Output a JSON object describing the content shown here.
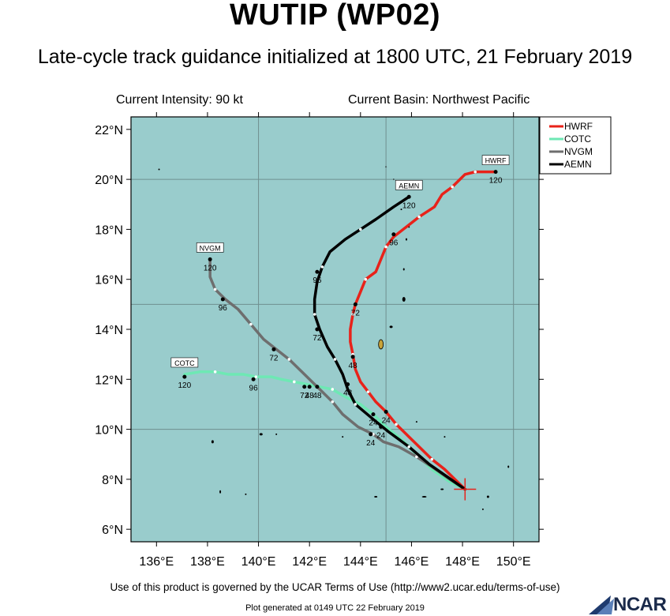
{
  "header": {
    "title": "WUTIP (WP02)",
    "subtitle": "Late-cycle track guidance initialized at 1800 UTC, 21 February 2019",
    "intensity_label": "Current Intensity: 90 kt",
    "basin_label": "Current Basin: Northwest Pacific"
  },
  "footer": {
    "terms": "Use of this product is governed by the UCAR Terms of Use (http://www2.ucar.edu/terms-of-use)",
    "generated": "Plot generated at 0149 UTC  22 February 2019",
    "logo_text": "NCAR"
  },
  "chart_data": {
    "type": "line",
    "xlim": [
      135,
      151
    ],
    "ylim": [
      5.5,
      22.5
    ],
    "x_ticks": [
      136,
      138,
      140,
      142,
      144,
      146,
      148,
      150
    ],
    "x_tick_labels": [
      "136°E",
      "138°E",
      "140°E",
      "142°E",
      "144°E",
      "146°E",
      "148°E",
      "150°E"
    ],
    "y_ticks": [
      6,
      8,
      10,
      12,
      14,
      16,
      18,
      20,
      22
    ],
    "y_tick_labels": [
      "6°N",
      "8°N",
      "10°N",
      "12°N",
      "14°N",
      "16°N",
      "18°N",
      "20°N",
      "22°N"
    ],
    "grid_lon": [
      140,
      145,
      150
    ],
    "grid_lat": [
      10,
      15,
      20
    ],
    "background_color": "#99cccc",
    "land_color": "#000000",
    "legend_position": "top-right",
    "current_position": {
      "lon": 148.1,
      "lat": 7.6
    },
    "series": [
      {
        "name": "HWRF",
        "color": "#e8221a",
        "track": [
          [
            148.1,
            7.6
          ],
          [
            147.7,
            8.0
          ],
          [
            147.3,
            8.4
          ],
          [
            146.8,
            8.8
          ],
          [
            146.3,
            9.3
          ],
          [
            145.9,
            9.7
          ],
          [
            145.4,
            10.2
          ],
          [
            145.0,
            10.7
          ],
          [
            144.6,
            11.1
          ],
          [
            144.3,
            11.5
          ],
          [
            144.0,
            11.9
          ],
          [
            143.8,
            12.4
          ],
          [
            143.7,
            13.0
          ],
          [
            143.6,
            13.5
          ],
          [
            143.6,
            14.0
          ],
          [
            143.7,
            14.6
          ],
          [
            143.8,
            15.0
          ],
          [
            144.0,
            15.5
          ],
          [
            144.2,
            16.0
          ],
          [
            144.6,
            16.3
          ],
          [
            144.8,
            16.8
          ],
          [
            145.0,
            17.3
          ],
          [
            145.3,
            17.7
          ],
          [
            145.8,
            18.1
          ],
          [
            146.3,
            18.5
          ],
          [
            146.9,
            18.9
          ],
          [
            147.2,
            19.4
          ],
          [
            147.6,
            19.7
          ],
          [
            147.9,
            20.0
          ],
          [
            148.1,
            20.2
          ],
          [
            148.5,
            20.3
          ],
          [
            149.3,
            20.3
          ]
        ],
        "labels": [
          {
            "text": "24",
            "lon": 145.0,
            "lat": 10.7
          },
          {
            "text": "48",
            "lon": 143.7,
            "lat": 12.9
          },
          {
            "text": "72",
            "lon": 143.8,
            "lat": 15.0
          },
          {
            "text": "96",
            "lon": 145.3,
            "lat": 17.8
          },
          {
            "text": "120",
            "lon": 149.3,
            "lat": 20.3
          }
        ],
        "end_label": "HWRF"
      },
      {
        "name": "COTC",
        "color": "#6ee8b4",
        "track": [
          [
            148.1,
            7.6
          ],
          [
            147.5,
            7.9
          ],
          [
            146.8,
            8.4
          ],
          [
            146.2,
            9.0
          ],
          [
            145.6,
            9.6
          ],
          [
            145.0,
            10.1
          ],
          [
            144.5,
            10.6
          ],
          [
            144.0,
            11.0
          ],
          [
            143.4,
            11.3
          ],
          [
            142.9,
            11.6
          ],
          [
            142.4,
            11.7
          ],
          [
            141.9,
            11.8
          ],
          [
            141.4,
            11.9
          ],
          [
            140.9,
            12.0
          ],
          [
            140.5,
            12.1
          ],
          [
            139.9,
            12.1
          ],
          [
            139.4,
            12.2
          ],
          [
            138.8,
            12.2
          ],
          [
            138.3,
            12.3
          ],
          [
            137.7,
            12.3
          ],
          [
            137.1,
            12.2
          ]
        ],
        "labels": [
          {
            "text": "24",
            "lon": 144.5,
            "lat": 10.6
          },
          {
            "text": "48",
            "lon": 142.0,
            "lat": 11.7
          },
          {
            "text": "72",
            "lon": 141.8,
            "lat": 11.7
          },
          {
            "text": "96",
            "lon": 139.8,
            "lat": 12.0
          },
          {
            "text": "120",
            "lon": 137.1,
            "lat": 12.1
          }
        ],
        "end_label": "COTC"
      },
      {
        "name": "NVGM",
        "color": "#6e6e6e",
        "track": [
          [
            148.1,
            7.6
          ],
          [
            147.5,
            8.0
          ],
          [
            146.8,
            8.5
          ],
          [
            146.2,
            8.9
          ],
          [
            145.5,
            9.3
          ],
          [
            144.9,
            9.5
          ],
          [
            144.5,
            9.8
          ],
          [
            143.9,
            10.1
          ],
          [
            143.3,
            10.6
          ],
          [
            142.9,
            11.1
          ],
          [
            142.3,
            11.7
          ],
          [
            141.7,
            12.3
          ],
          [
            141.2,
            12.8
          ],
          [
            140.7,
            13.2
          ],
          [
            140.2,
            13.6
          ],
          [
            139.7,
            14.2
          ],
          [
            139.2,
            14.8
          ],
          [
            138.7,
            15.2
          ],
          [
            138.3,
            15.6
          ],
          [
            138.1,
            16.1
          ],
          [
            138.1,
            16.8
          ]
        ],
        "labels": [
          {
            "text": "24",
            "lon": 144.4,
            "lat": 9.8
          },
          {
            "text": "48",
            "lon": 142.3,
            "lat": 11.7
          },
          {
            "text": "72",
            "lon": 140.6,
            "lat": 13.2
          },
          {
            "text": "96",
            "lon": 138.6,
            "lat": 15.2
          },
          {
            "text": "120",
            "lon": 138.1,
            "lat": 16.8
          }
        ],
        "end_label": "NVGM"
      },
      {
        "name": "AEMN",
        "color": "#000000",
        "track": [
          [
            148.1,
            7.6
          ],
          [
            147.4,
            8.1
          ],
          [
            146.7,
            8.6
          ],
          [
            145.9,
            9.3
          ],
          [
            145.1,
            9.9
          ],
          [
            144.5,
            10.4
          ],
          [
            143.8,
            11.0
          ],
          [
            143.5,
            11.6
          ],
          [
            143.3,
            12.2
          ],
          [
            143.0,
            12.8
          ],
          [
            142.7,
            13.3
          ],
          [
            142.4,
            14.0
          ],
          [
            142.2,
            14.6
          ],
          [
            142.2,
            15.2
          ],
          [
            142.3,
            15.9
          ],
          [
            142.5,
            16.5
          ],
          [
            142.8,
            17.1
          ],
          [
            143.4,
            17.6
          ],
          [
            144.0,
            18.0
          ],
          [
            144.6,
            18.4
          ],
          [
            145.3,
            18.9
          ],
          [
            145.9,
            19.3
          ]
        ],
        "labels": [
          {
            "text": "24",
            "lon": 144.8,
            "lat": 10.1
          },
          {
            "text": "48",
            "lon": 143.5,
            "lat": 11.8
          },
          {
            "text": "72",
            "lon": 142.3,
            "lat": 14.0
          },
          {
            "text": "96",
            "lon": 142.3,
            "lat": 16.3
          },
          {
            "text": "120",
            "lon": 145.9,
            "lat": 19.3
          }
        ],
        "end_label": "AEMN"
      }
    ]
  }
}
